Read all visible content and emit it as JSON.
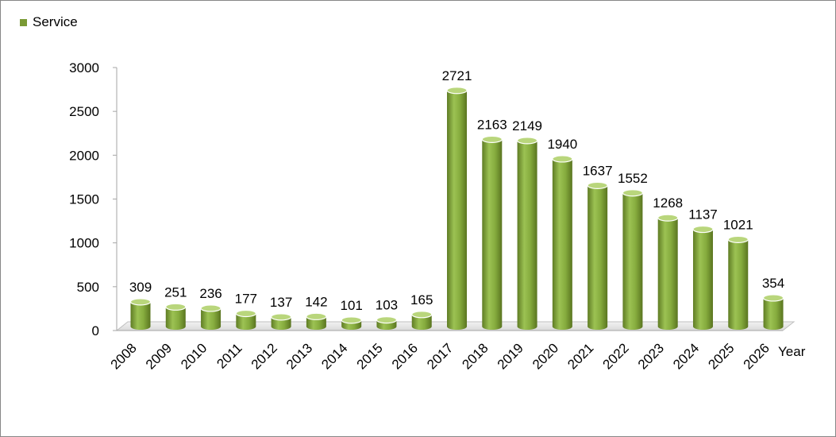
{
  "chart_data": {
    "type": "bar",
    "title": "",
    "xlabel": "Year",
    "ylabel": "",
    "ylim": [
      0,
      3000
    ],
    "yticks": [
      "0",
      "500",
      "1000",
      "1500",
      "2000",
      "2500",
      "3000"
    ],
    "legend_position": "top-left",
    "grid": false,
    "bar_color": "#7a9a35",
    "categories": [
      "2008",
      "2009",
      "2010",
      "2011",
      "2012",
      "2013",
      "2014",
      "2015",
      "2016",
      "2017",
      "2018",
      "2019",
      "2020",
      "2021",
      "2022",
      "2023",
      "2024",
      "2025",
      "2026"
    ],
    "series": [
      {
        "name": "Service",
        "values": [
          309,
          251,
          236,
          177,
          137,
          142,
          101,
          103,
          165,
          2721,
          2163,
          2149,
          1940,
          1637,
          1552,
          1268,
          1137,
          1021,
          354
        ]
      }
    ]
  }
}
